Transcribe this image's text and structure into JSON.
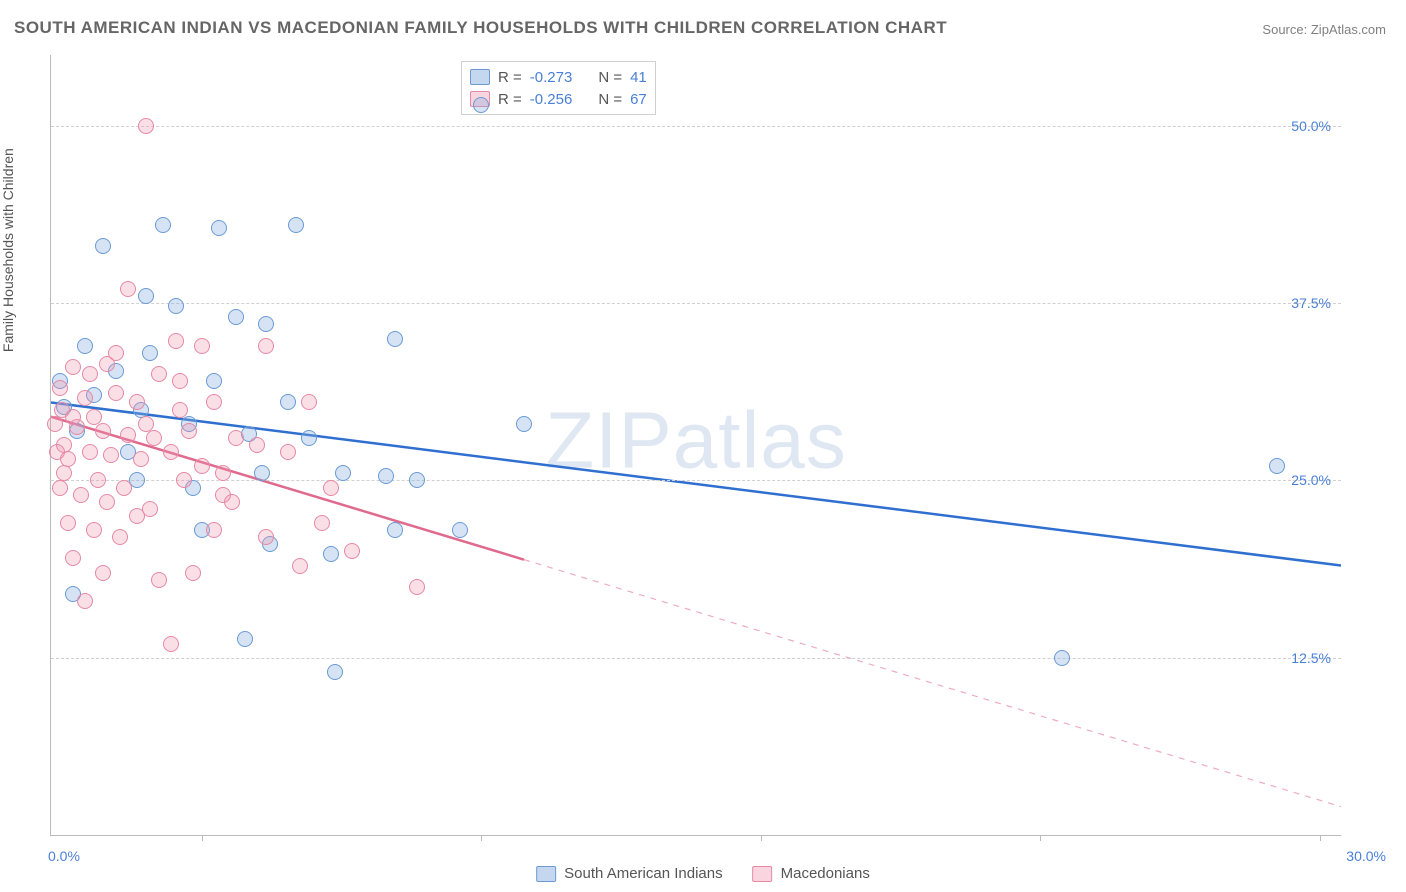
{
  "title": "SOUTH AMERICAN INDIAN VS MACEDONIAN FAMILY HOUSEHOLDS WITH CHILDREN CORRELATION CHART",
  "source_label": "Source:",
  "source_value": "ZipAtlas.com",
  "y_axis_label": "Family Households with Children",
  "watermark": "ZIPatlas",
  "chart": {
    "type": "scatter",
    "xlim": [
      0,
      30
    ],
    "ylim": [
      0,
      55
    ],
    "y_ticks": [
      12.5,
      25.0,
      37.5,
      50.0
    ],
    "y_tick_labels": [
      "12.5%",
      "25.0%",
      "37.5%",
      "50.0%"
    ],
    "x_tick_positions": [
      3.5,
      10,
      16.5,
      23,
      29.5
    ],
    "x_origin_label": "0.0%",
    "x_end_label": "30.0%",
    "background_color": "#ffffff",
    "grid_color": "#d0d0d0",
    "axis_color": "#bbbbbb",
    "tick_label_color": "#4a7fd6",
    "marker_radius": 7,
    "series": [
      {
        "name": "South American Indians",
        "color_fill": "rgba(137,175,223,0.35)",
        "color_stroke": "#6a9bd4",
        "trend_color": "#2f6fd0",
        "trend_width": 2.5,
        "r": -0.273,
        "n": 41,
        "trend": {
          "x1": 0,
          "y1": 30.5,
          "x2": 30,
          "y2": 19.0,
          "dash_from_x": 30
        },
        "points": [
          [
            10.0,
            51.5
          ],
          [
            1.2,
            41.5
          ],
          [
            2.6,
            43.0
          ],
          [
            3.9,
            42.8
          ],
          [
            5.7,
            43.0
          ],
          [
            2.2,
            38.0
          ],
          [
            2.9,
            37.3
          ],
          [
            4.3,
            36.5
          ],
          [
            5.0,
            36.0
          ],
          [
            8.0,
            35.0
          ],
          [
            0.3,
            30.2
          ],
          [
            1.0,
            31.0
          ],
          [
            2.1,
            30.0
          ],
          [
            3.2,
            29.0
          ],
          [
            0.6,
            28.5
          ],
          [
            4.6,
            28.3
          ],
          [
            6.0,
            28.0
          ],
          [
            11.0,
            29.0
          ],
          [
            2.0,
            25.0
          ],
          [
            3.3,
            24.5
          ],
          [
            4.9,
            25.5
          ],
          [
            6.8,
            25.5
          ],
          [
            7.8,
            25.3
          ],
          [
            8.5,
            25.0
          ],
          [
            3.5,
            21.5
          ],
          [
            5.1,
            20.5
          ],
          [
            6.5,
            19.8
          ],
          [
            8.0,
            21.5
          ],
          [
            9.5,
            21.5
          ],
          [
            6.6,
            11.5
          ],
          [
            4.5,
            13.8
          ],
          [
            0.5,
            17.0
          ],
          [
            1.5,
            32.7
          ],
          [
            2.3,
            34.0
          ],
          [
            3.8,
            32.0
          ],
          [
            0.8,
            34.5
          ],
          [
            1.8,
            27.0
          ],
          [
            5.5,
            30.5
          ],
          [
            23.5,
            12.5
          ],
          [
            28.5,
            26.0
          ],
          [
            0.2,
            32.0
          ]
        ]
      },
      {
        "name": "Macedonians",
        "color_fill": "rgba(240,150,175,0.30)",
        "color_stroke": "#e589a5",
        "trend_color": "#e06a8d",
        "trend_width": 2.5,
        "r": -0.256,
        "n": 67,
        "trend": {
          "x1": 0,
          "y1": 29.5,
          "x2": 30,
          "y2": 2.0,
          "dash_from_x": 11
        },
        "points": [
          [
            2.2,
            50.0
          ],
          [
            1.8,
            38.5
          ],
          [
            2.9,
            34.8
          ],
          [
            3.5,
            34.5
          ],
          [
            5.0,
            34.5
          ],
          [
            0.5,
            33.0
          ],
          [
            1.3,
            33.2
          ],
          [
            2.5,
            32.5
          ],
          [
            0.2,
            31.5
          ],
          [
            0.8,
            30.8
          ],
          [
            1.5,
            31.2
          ],
          [
            2.0,
            30.5
          ],
          [
            3.0,
            30.0
          ],
          [
            3.8,
            30.5
          ],
          [
            0.1,
            29.0
          ],
          [
            0.6,
            28.8
          ],
          [
            1.2,
            28.5
          ],
          [
            1.8,
            28.2
          ],
          [
            2.4,
            28.0
          ],
          [
            3.2,
            28.5
          ],
          [
            0.3,
            27.5
          ],
          [
            0.9,
            27.0
          ],
          [
            1.4,
            26.8
          ],
          [
            2.1,
            26.5
          ],
          [
            2.8,
            27.0
          ],
          [
            6.0,
            30.5
          ],
          [
            0.2,
            24.5
          ],
          [
            0.7,
            24.0
          ],
          [
            1.3,
            23.5
          ],
          [
            2.0,
            22.5
          ],
          [
            3.1,
            25.0
          ],
          [
            4.0,
            25.5
          ],
          [
            4.8,
            27.5
          ],
          [
            5.5,
            27.0
          ],
          [
            3.5,
            26.0
          ],
          [
            0.4,
            22.0
          ],
          [
            1.0,
            21.5
          ],
          [
            1.6,
            21.0
          ],
          [
            2.3,
            23.0
          ],
          [
            3.8,
            21.5
          ],
          [
            4.0,
            24.0
          ],
          [
            6.5,
            24.5
          ],
          [
            6.3,
            22.0
          ],
          [
            0.5,
            19.5
          ],
          [
            1.2,
            18.5
          ],
          [
            2.5,
            18.0
          ],
          [
            3.3,
            18.5
          ],
          [
            0.8,
            16.5
          ],
          [
            4.2,
            23.5
          ],
          [
            5.0,
            21.0
          ],
          [
            5.8,
            19.0
          ],
          [
            7.0,
            20.0
          ],
          [
            8.5,
            17.5
          ],
          [
            2.8,
            13.5
          ],
          [
            0.3,
            25.5
          ],
          [
            1.1,
            25.0
          ],
          [
            1.7,
            24.5
          ],
          [
            0.15,
            27.0
          ],
          [
            0.5,
            29.5
          ],
          [
            1.0,
            29.5
          ],
          [
            2.2,
            29.0
          ],
          [
            0.25,
            30.0
          ],
          [
            4.3,
            28.0
          ],
          [
            3.0,
            32.0
          ],
          [
            1.5,
            34.0
          ],
          [
            0.9,
            32.5
          ],
          [
            0.4,
            26.5
          ]
        ]
      }
    ]
  },
  "stats_box": {
    "rows": [
      {
        "swatch": "blue",
        "r_label": "R =",
        "r": "-0.273",
        "n_label": "N =",
        "n": "41"
      },
      {
        "swatch": "pink",
        "r_label": "R =",
        "r": "-0.256",
        "n_label": "N =",
        "n": "67"
      }
    ]
  },
  "x_legend": {
    "items": [
      {
        "swatch": "blue",
        "label": "South American Indians"
      },
      {
        "swatch": "pink",
        "label": "Macedonians"
      }
    ]
  }
}
